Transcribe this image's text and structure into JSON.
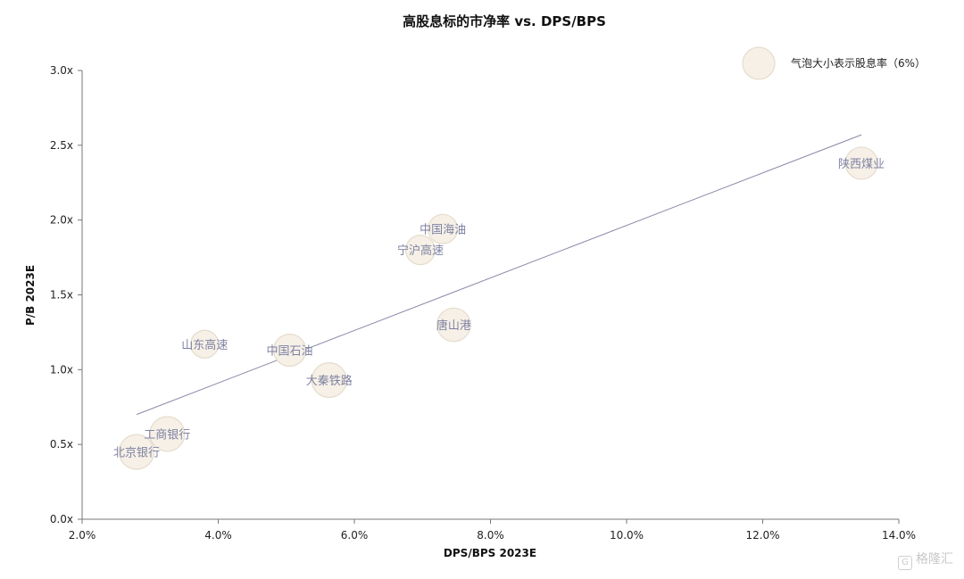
{
  "chart_data": {
    "type": "scatter",
    "title": "高股息标的市净率 vs. DPS/BPS",
    "xlabel": "DPS/BPS 2023E",
    "ylabel": "P/B 2023E",
    "xlim": [
      0.02,
      0.14
    ],
    "ylim": [
      0,
      3.0
    ],
    "x_ticks": [
      "2.0%",
      "4.0%",
      "6.0%",
      "8.0%",
      "10.0%",
      "12.0%",
      "14.0%"
    ],
    "y_ticks": [
      "0.0x",
      "0.5x",
      "1.0x",
      "1.5x",
      "2.0x",
      "2.5x",
      "3.0x"
    ],
    "grid": false,
    "legend": {
      "label": "气泡大小表示股息率（6%）",
      "placement": "top-right"
    },
    "points": [
      {
        "label": "陕西煤业",
        "x": 0.1345,
        "y": 2.38,
        "size": 0.06
      },
      {
        "label": "中国海油",
        "x": 0.073,
        "y": 1.94,
        "size": 0.05
      },
      {
        "label": "宁沪高速",
        "x": 0.0697,
        "y": 1.8,
        "size": 0.05
      },
      {
        "label": "唐山港",
        "x": 0.0746,
        "y": 1.3,
        "size": 0.065
      },
      {
        "label": "山东高速",
        "x": 0.038,
        "y": 1.17,
        "size": 0.045
      },
      {
        "label": "中国石油",
        "x": 0.0505,
        "y": 1.13,
        "size": 0.06
      },
      {
        "label": "大秦铁路",
        "x": 0.0563,
        "y": 0.93,
        "size": 0.07
      },
      {
        "label": "工商银行",
        "x": 0.0325,
        "y": 0.57,
        "size": 0.07
      },
      {
        "label": "北京银行",
        "x": 0.028,
        "y": 0.45,
        "size": 0.07
      }
    ],
    "trendline": {
      "x": [
        0.028,
        0.1345
      ],
      "y": [
        0.7,
        2.57
      ]
    }
  },
  "watermark": "格隆汇"
}
